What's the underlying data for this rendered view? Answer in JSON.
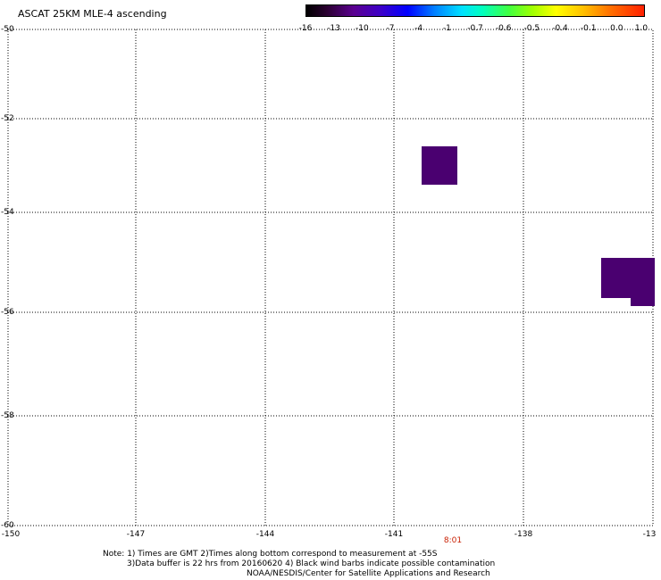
{
  "title": "ASCAT 25KM MLE-4 ascending",
  "colorbar": {
    "labels": [
      "-16",
      "-13",
      "-10",
      "-7",
      "-4",
      "-1",
      "-0.7",
      "-0.6",
      "-0.5",
      "-0.4",
      "-0.1",
      "0.0",
      "1.0"
    ],
    "colors": [
      "#000000",
      "#5b0090",
      "#0000ff",
      "#00e0ff",
      "#40ff40",
      "#ffff00",
      "#ff7000",
      "#ff2000"
    ]
  },
  "map": {
    "lat_labels": [
      "-50",
      "-52",
      "-54",
      "-56",
      "-58",
      "-60"
    ],
    "lon_labels": [
      "-150",
      "-147",
      "-144",
      "-141",
      "-138",
      "-13"
    ],
    "time_label": "8:01",
    "cell_color": "#4a0070"
  },
  "notes": {
    "line1": "Note: 1) Times are GMT 2)Times along bottom correspond to measurement at -55S",
    "line2": "3)Data buffer is 22 hrs from 20160620 4) Black wind barbs indicate possible contamination",
    "line3": "NOAA/NESDIS/Center for Satellite Applications and Research"
  }
}
